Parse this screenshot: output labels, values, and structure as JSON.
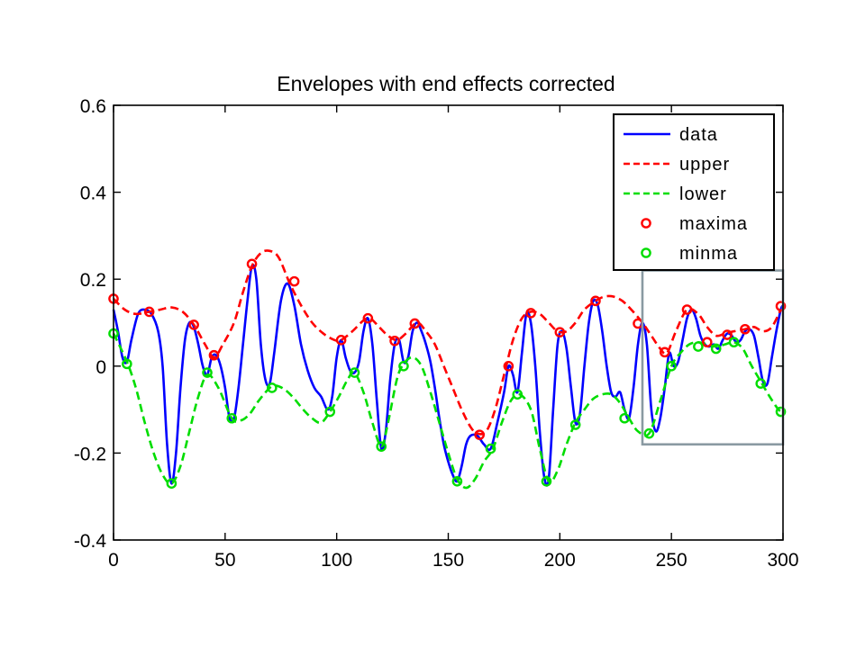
{
  "chart_data": {
    "type": "line",
    "title": "Envelopes with end effects corrected",
    "xlabel": "",
    "ylabel": "",
    "xlim": [
      0,
      300
    ],
    "ylim": [
      -0.4,
      0.6
    ],
    "xticks": [
      "0",
      "50",
      "100",
      "150",
      "200",
      "250",
      "300"
    ],
    "yticks": [
      "-0.4",
      "-0.2",
      "0",
      "0.2",
      "0.4",
      "0.6"
    ],
    "xtick_values": [
      0,
      50,
      100,
      150,
      200,
      250,
      300
    ],
    "ytick_values": [
      -0.4,
      -0.2,
      0,
      0.2,
      0.4,
      0.6
    ],
    "grid": false,
    "legend_position": "top-right",
    "highlight_box": {
      "x": [
        237,
        300
      ],
      "y": [
        -0.18,
        0.22
      ],
      "color": "#8a9aa2"
    },
    "series": [
      {
        "name": "data",
        "style": "solid",
        "color": "#0000ff",
        "x": [
          0,
          2,
          4,
          6,
          8,
          11,
          14,
          17,
          20,
          22,
          24,
          26,
          28,
          30,
          32,
          34,
          36,
          38,
          40,
          42,
          44,
          46,
          48,
          50,
          52,
          54,
          56,
          58,
          60,
          62,
          64,
          66,
          68,
          70,
          72,
          75,
          78,
          81,
          84,
          87,
          90,
          93,
          96,
          98,
          100,
          102,
          104,
          106,
          108,
          110,
          112,
          114,
          116,
          118,
          120,
          122,
          124,
          126,
          128,
          130,
          132,
          134,
          136,
          138,
          140,
          142,
          144,
          146,
          148,
          150,
          152,
          154,
          156,
          158,
          160,
          163,
          166,
          169,
          172,
          175,
          177,
          179,
          181,
          183,
          185,
          187,
          189,
          191,
          193,
          195,
          197,
          199,
          201,
          203,
          205,
          207,
          209,
          211,
          213,
          215,
          217,
          219,
          221,
          223,
          225,
          227,
          229,
          231,
          233,
          235,
          237,
          239,
          241,
          243,
          245,
          247,
          249,
          251,
          253,
          255,
          257,
          259,
          261,
          263,
          265,
          267,
          269,
          271,
          273,
          275,
          277,
          279,
          281,
          283,
          285,
          287,
          289,
          291,
          293,
          295,
          297,
          299,
          300
        ],
        "y": [
          0.13,
          0.08,
          0.02,
          0.01,
          0.06,
          0.12,
          0.13,
          0.12,
          0.08,
          0.0,
          -0.18,
          -0.27,
          -0.2,
          -0.05,
          0.06,
          0.1,
          0.09,
          0.05,
          0.0,
          -0.02,
          0.02,
          0.025,
          0.0,
          -0.05,
          -0.12,
          -0.12,
          -0.05,
          0.05,
          0.15,
          0.23,
          0.2,
          0.05,
          -0.03,
          -0.04,
          0.03,
          0.15,
          0.19,
          0.14,
          0.05,
          -0.01,
          -0.05,
          -0.07,
          -0.1,
          -0.07,
          0.02,
          0.06,
          0.02,
          -0.01,
          -0.015,
          0.01,
          0.08,
          0.11,
          0.05,
          -0.08,
          -0.19,
          -0.15,
          -0.03,
          0.05,
          0.06,
          0.01,
          0.02,
          0.08,
          0.1,
          0.08,
          0.05,
          0.01,
          -0.05,
          -0.12,
          -0.18,
          -0.22,
          -0.25,
          -0.265,
          -0.23,
          -0.18,
          -0.16,
          -0.16,
          -0.18,
          -0.19,
          -0.13,
          -0.06,
          0.0,
          -0.02,
          -0.06,
          0.03,
          0.12,
          0.1,
          0.0,
          -0.15,
          -0.255,
          -0.26,
          -0.1,
          0.05,
          0.08,
          0.04,
          -0.05,
          -0.13,
          -0.11,
          0.0,
          0.1,
          0.15,
          0.14,
          0.08,
          0.0,
          -0.06,
          -0.07,
          -0.06,
          -0.1,
          -0.12,
          -0.05,
          0.05,
          0.1,
          0.05,
          -0.1,
          -0.15,
          -0.12,
          -0.05,
          0.03,
          0.0,
          0.01,
          0.06,
          0.11,
          0.13,
          0.11,
          0.07,
          0.05,
          0.045,
          0.05,
          0.04,
          0.06,
          0.075,
          0.07,
          0.055,
          0.06,
          0.08,
          0.085,
          0.07,
          0.02,
          -0.035,
          -0.04,
          0.02,
          0.08,
          0.13,
          0.14
        ]
      },
      {
        "name": "upper",
        "style": "dashed",
        "color": "#ff0000",
        "x": [
          0,
          5,
          10,
          16,
          21,
          26,
          31,
          36,
          41,
          45,
          49,
          54,
          58,
          62,
          66,
          70,
          74,
          79,
          84,
          89,
          94,
          99,
          102,
          107,
          112,
          115,
          119,
          123,
          127,
          131,
          136,
          140,
          144,
          148,
          152,
          156,
          160,
          163,
          167,
          171,
          175,
          179,
          183,
          187,
          191,
          195,
          199,
          203,
          207,
          211,
          216,
          220,
          224,
          228,
          232,
          237,
          241,
          245,
          248,
          252,
          257,
          262,
          266,
          270,
          274,
          278,
          283,
          287,
          291,
          295,
          299
        ],
        "y": [
          0.155,
          0.13,
          0.12,
          0.125,
          0.13,
          0.135,
          0.125,
          0.095,
          0.05,
          0.02,
          0.05,
          0.1,
          0.17,
          0.23,
          0.26,
          0.265,
          0.25,
          0.19,
          0.14,
          0.1,
          0.075,
          0.06,
          0.06,
          0.08,
          0.105,
          0.11,
          0.09,
          0.07,
          0.06,
          0.075,
          0.1,
          0.08,
          0.05,
          0.0,
          -0.05,
          -0.1,
          -0.14,
          -0.155,
          -0.15,
          -0.1,
          -0.02,
          0.06,
          0.11,
          0.125,
          0.12,
          0.1,
          0.08,
          0.08,
          0.1,
          0.13,
          0.15,
          0.16,
          0.16,
          0.15,
          0.13,
          0.1,
          0.07,
          0.04,
          0.03,
          0.08,
          0.13,
          0.12,
          0.09,
          0.07,
          0.075,
          0.08,
          0.085,
          0.09,
          0.08,
          0.09,
          0.13
        ]
      },
      {
        "name": "lower",
        "style": "dashed",
        "color": "#00dd00",
        "x": [
          0,
          6,
          10,
          14,
          18,
          22,
          26,
          30,
          34,
          38,
          42,
          47,
          53,
          57,
          61,
          65,
          70,
          73,
          77,
          81,
          85,
          89,
          93,
          97,
          101,
          105,
          108,
          112,
          116,
          120,
          123,
          127,
          130,
          134,
          138,
          142,
          146,
          150,
          154,
          158,
          162,
          166,
          170,
          174,
          178,
          182,
          187,
          191,
          195,
          199,
          203,
          207,
          211,
          215,
          219,
          223,
          227,
          231,
          235,
          240,
          245,
          250,
          254,
          258,
          262,
          266,
          270,
          274,
          278,
          282,
          286,
          290,
          294,
          298,
          300
        ],
        "y": [
          0.075,
          0.01,
          -0.05,
          -0.13,
          -0.2,
          -0.25,
          -0.27,
          -0.23,
          -0.15,
          -0.07,
          -0.02,
          -0.05,
          -0.12,
          -0.125,
          -0.11,
          -0.08,
          -0.05,
          -0.045,
          -0.055,
          -0.075,
          -0.1,
          -0.12,
          -0.13,
          -0.105,
          -0.07,
          -0.03,
          -0.015,
          -0.06,
          -0.13,
          -0.185,
          -0.13,
          -0.03,
          0.005,
          0.02,
          0.0,
          -0.06,
          -0.13,
          -0.2,
          -0.26,
          -0.28,
          -0.26,
          -0.22,
          -0.19,
          -0.13,
          -0.08,
          -0.065,
          -0.1,
          -0.19,
          -0.265,
          -0.24,
          -0.18,
          -0.13,
          -0.1,
          -0.075,
          -0.065,
          -0.065,
          -0.085,
          -0.12,
          -0.15,
          -0.155,
          -0.08,
          0.0,
          0.03,
          0.05,
          0.055,
          0.05,
          0.045,
          0.05,
          0.055,
          0.04,
          0.0,
          -0.035,
          -0.07,
          -0.1,
          -0.105
        ]
      },
      {
        "name": "maxima",
        "style": "markers",
        "color": "#ff0000",
        "x": [
          0,
          16,
          36,
          45,
          62,
          81,
          102,
          114,
          126,
          135,
          164,
          177,
          187,
          200,
          216,
          235,
          247,
          257,
          266,
          275,
          283,
          299
        ],
        "y": [
          0.155,
          0.125,
          0.095,
          0.025,
          0.235,
          0.195,
          0.06,
          0.11,
          0.058,
          0.098,
          -0.158,
          0.0,
          0.122,
          0.078,
          0.15,
          0.098,
          0.032,
          0.13,
          0.055,
          0.072,
          0.085,
          0.138
        ]
      },
      {
        "name": "minma",
        "style": "markers",
        "color": "#00dd00",
        "x": [
          0,
          6,
          26,
          42,
          53,
          71,
          97,
          108,
          120,
          130,
          154,
          169,
          181,
          194,
          207,
          229,
          240,
          250,
          262,
          270,
          278,
          290,
          299
        ],
        "y": [
          0.075,
          0.005,
          -0.27,
          -0.015,
          -0.12,
          -0.05,
          -0.105,
          -0.015,
          -0.185,
          0.0,
          -0.265,
          -0.19,
          -0.065,
          -0.265,
          -0.135,
          -0.12,
          -0.155,
          0.0,
          0.045,
          0.04,
          0.055,
          -0.04,
          -0.105
        ]
      }
    ]
  }
}
